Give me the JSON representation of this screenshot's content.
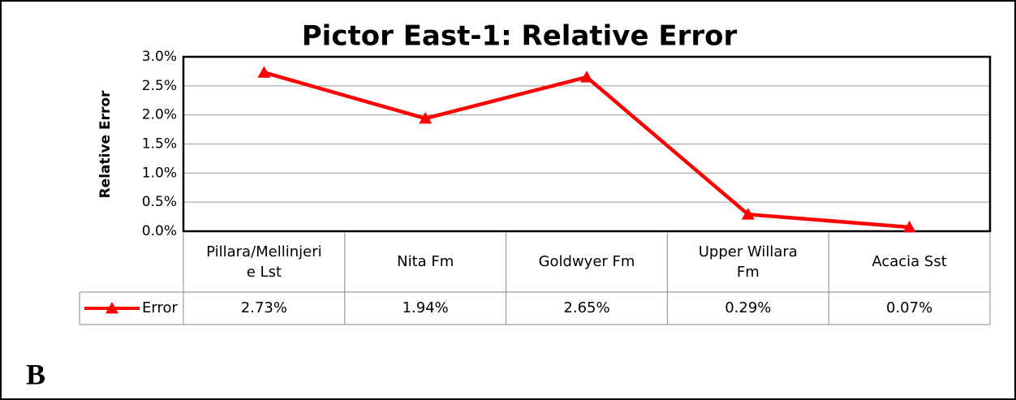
{
  "chart_data": {
    "type": "line",
    "title": "Pictor East-1: Relative Error",
    "y_label": "Relative Error",
    "categories": [
      "Pillara/Mellinjerie Lst",
      "Nita Fm",
      "Goldwyer Fm",
      "Upper Willara Fm",
      "Acacia Sst"
    ],
    "series": [
      {
        "name": "Error",
        "color": "#ff0000",
        "marker": "triangle",
        "values": [
          2.73,
          1.94,
          2.65,
          0.29,
          0.07
        ],
        "value_labels": [
          "2.73%",
          "1.94%",
          "2.65%",
          "0.29%",
          "0.07%"
        ]
      }
    ],
    "ylim": [
      0,
      3
    ],
    "yticks": [
      {
        "value": 0,
        "label": "0.0%"
      },
      {
        "value": 0.5,
        "label": "0.5%"
      },
      {
        "value": 1,
        "label": "1.0%"
      },
      {
        "value": 1.5,
        "label": "1.5%"
      },
      {
        "value": 2,
        "label": "2.0%"
      },
      {
        "value": 2.5,
        "label": "2.5%"
      },
      {
        "value": 3,
        "label": "3.0%"
      }
    ],
    "grid": true
  },
  "panel_label": "B"
}
